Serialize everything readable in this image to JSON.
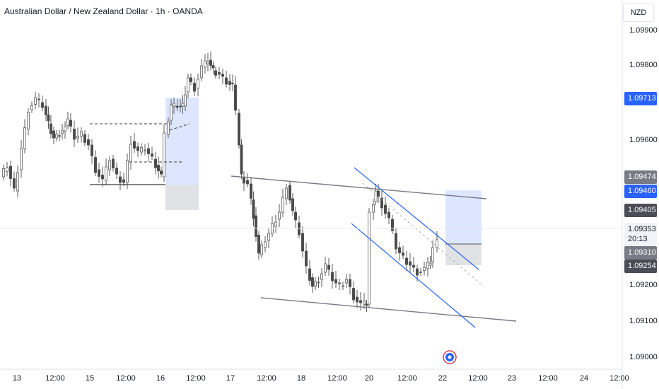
{
  "title": "Australian Dollar / New Zealand Dollar · 1h · OANDA",
  "currency": "NZD",
  "chart_data": {
    "type": "candlestick",
    "y_ticks": [
      "1.09900",
      "1.09800",
      "1.09600",
      "1.09200",
      "1.09100",
      "1.09000"
    ],
    "x_ticks": [
      "13",
      "12:00",
      "15",
      "12:00",
      "16",
      "12:00",
      "17",
      "12:00",
      "18",
      "12:00",
      "20",
      "12:00",
      "22",
      "12:00",
      "23",
      "12:00",
      "24",
      "12:00"
    ],
    "price_tags": {
      "blue_level_1": "1.09713",
      "level_1": "1.09474",
      "blue_level_2": "1.09460",
      "level_2": "1.09405",
      "last_price": "1.09353",
      "countdown": "20:13",
      "level_3": "1.09310",
      "level_4": "1.09254"
    },
    "colors": {
      "accent": "#2962ff",
      "text": "#131722",
      "tag_dark": "#4a4d56",
      "tag_gray": "#787b86"
    }
  }
}
